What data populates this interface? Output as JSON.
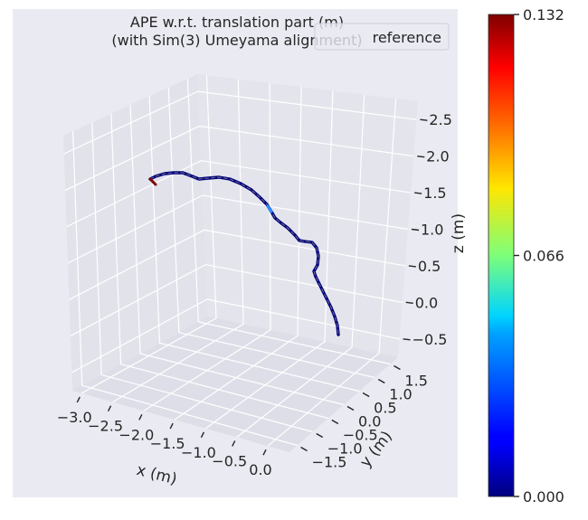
{
  "chart_data": {
    "type": "line",
    "projection": "3d",
    "title": "APE w.r.t. translation part (m)",
    "subtitle": "(with Sim(3) Umeyama alignment)",
    "xlabel": "x (m)",
    "ylabel": "y (m)",
    "zlabel": "z (m)",
    "x_ticks": [
      "−3.0",
      "−2.5",
      "−2.0",
      "−1.5",
      "−1.0",
      "−0.5",
      "0.0"
    ],
    "y_ticks": [
      "−1.5",
      "−1.0",
      "−0.5",
      "0.0",
      "0.5",
      "1.0",
      "1.5"
    ],
    "z_ticks": [
      "−0.5",
      "0.0",
      "0.5",
      "1.0",
      "1.5",
      "2.0",
      "2.5"
    ],
    "legend": {
      "entries": [
        "reference"
      ],
      "placement": "top-right"
    },
    "colorbar": {
      "colormap": "jet",
      "min": 0.0,
      "max": 0.132,
      "tick_labels": [
        "0.000",
        "0.066",
        "0.132"
      ],
      "tick_values": [
        0.0,
        0.066,
        0.132
      ]
    },
    "grid": true,
    "background": "#e6e6ef",
    "series": [
      {
        "name": "reference",
        "color": "#7f7f7f"
      }
    ]
  }
}
